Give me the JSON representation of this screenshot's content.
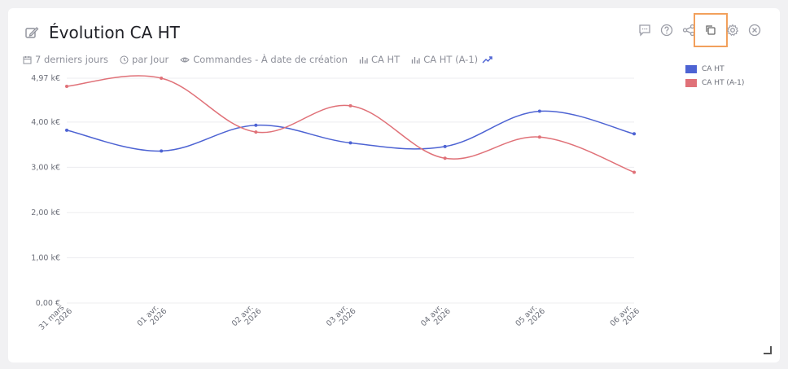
{
  "title": "Évolution CA HT",
  "meta": {
    "period": "7 derniers jours",
    "granularity": "par Jour",
    "source": "Commandes - À date de création",
    "metric1": "CA HT",
    "metric2": "CA HT (A-1)"
  },
  "colors": {
    "ca": "#4d63d3",
    "ca_prev": "#e07178",
    "highlight": "#f2a05c"
  },
  "toolbar": [
    "comment-icon",
    "help-icon",
    "share-icon",
    "duplicate-icon",
    "settings-icon",
    "close-icon"
  ],
  "chart_data": {
    "type": "line",
    "categories": [
      "31 mars 2026",
      "01 avr. 2026",
      "02 avr. 2026",
      "03 avr. 2026",
      "04 avr. 2026",
      "05 avr. 2026",
      "06 avr. 2026"
    ],
    "series": [
      {
        "name": "CA HT",
        "values": [
          3.82,
          3.36,
          3.93,
          3.54,
          3.46,
          4.24,
          3.74
        ]
      },
      {
        "name": "CA HT (A-1)",
        "values": [
          4.79,
          4.97,
          3.78,
          4.36,
          3.2,
          3.67,
          2.89
        ]
      }
    ],
    "ytick_labels": [
      "4,97 k€",
      "4,00 k€",
      "3,00 k€",
      "2,00 k€",
      "1,00 k€",
      "0,00 €"
    ],
    "ytick_values": [
      4.97,
      4.0,
      3.0,
      2.0,
      1.0,
      0.0
    ],
    "ylim": [
      0,
      4.97
    ],
    "grid": true,
    "legend_position": "right"
  }
}
